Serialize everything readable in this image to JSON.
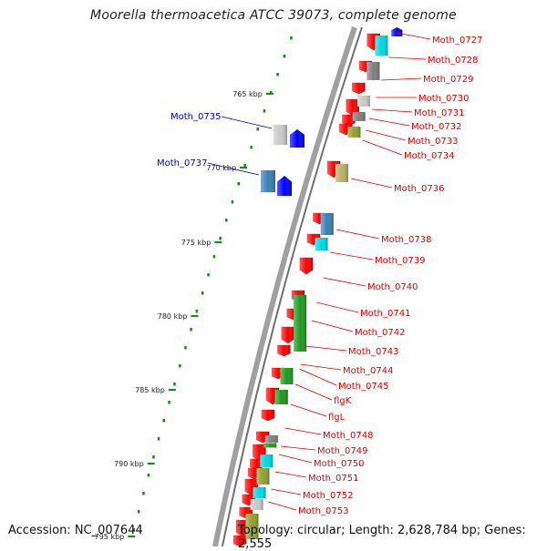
{
  "title": "Moorella thermoacetica ATCC 39073, complete genome",
  "footer": {
    "accession": "Accession: NC_007644",
    "topology": "Topology: circular; Length: 2,628,784 bp; Genes: 2,555"
  },
  "scale_labels": [
    "765 kbp",
    "770 kbp",
    "775 kbp",
    "780 kbp",
    "785 kbp",
    "790 kbp",
    "795 kbp"
  ],
  "colors": {
    "backbone": "#8c8c8c",
    "label_red": "#e00000",
    "label_blue": "#0000cc",
    "tick_green": "#1a8a1a",
    "gene_red": "#ff0000",
    "gene_blue": "#0000ff",
    "gene_cyan": "#00d8e0",
    "gene_green": "#1e9a1e",
    "gene_olive": "#8fa030",
    "gene_steel": "#3a7fb5",
    "gene_gray": "#808080",
    "gene_lightgray": "#c8c8c8",
    "gene_khaki": "#b6b060"
  },
  "gene_labels_right": [
    "Moth_0727",
    "Moth_0728",
    "Moth_0729",
    "Moth_0730",
    "Moth_0731",
    "Moth_0732",
    "Moth_0733",
    "Moth_0734",
    "Moth_0736",
    "Moth_0738",
    "Moth_0739",
    "Moth_0740",
    "Moth_0741",
    "Moth_0742",
    "Moth_0743",
    "Moth_0744",
    "Moth_0745",
    "flgK",
    "flgL",
    "Moth_0748",
    "Moth_0749",
    "Moth_0750",
    "Moth_0751",
    "Moth_0752",
    "Moth_0753"
  ],
  "gene_labels_left": [
    "Moth_0735",
    "Moth_0737"
  ]
}
